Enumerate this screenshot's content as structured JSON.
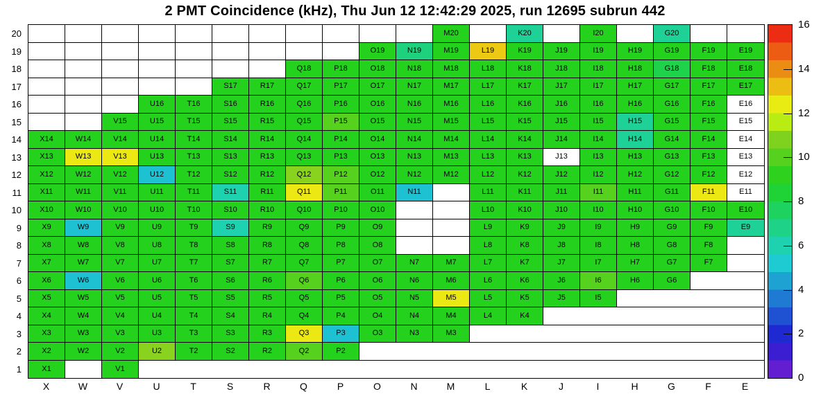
{
  "title": "2 PMT Coincidence (kHz), Thu Jun 12 12:42:29 2025, run 12695 subrun 442",
  "chart_data": {
    "type": "heatmap",
    "title": "2 PMT Coincidence (kHz), Thu Jun 12 12:42:29 2025, run 12695 subrun 442",
    "unit": "kHz",
    "x_categories": [
      "X",
      "W",
      "V",
      "U",
      "T",
      "S",
      "R",
      "Q",
      "P",
      "O",
      "N",
      "M",
      "L",
      "K",
      "J",
      "I",
      "H",
      "G",
      "F",
      "E"
    ],
    "y_categories_top_to_bottom": [
      "20",
      "19",
      "18",
      "17",
      "16",
      "15",
      "14",
      "13",
      "12",
      "11",
      "10",
      "9",
      "8",
      "7",
      "6",
      "5",
      "4",
      "3",
      "2",
      "1"
    ],
    "zlim": [
      0,
      16
    ],
    "colorbar_ticks": [
      0,
      2,
      4,
      6,
      8,
      10,
      12,
      14,
      16
    ],
    "legend_position": "right",
    "cells_label_value": [
      [
        "M20",
        9
      ],
      [
        "K20",
        6.5
      ],
      [
        "I20",
        9
      ],
      [
        "G20",
        6.5
      ],
      [
        "O19",
        9
      ],
      [
        "N19",
        7
      ],
      [
        "M19",
        9
      ],
      [
        "L19",
        13
      ],
      [
        "K19",
        9
      ],
      [
        "J19",
        9
      ],
      [
        "I19",
        9
      ],
      [
        "H19",
        9
      ],
      [
        "G19",
        9
      ],
      [
        "F19",
        9
      ],
      [
        "E19",
        9
      ],
      [
        "Q18",
        9
      ],
      [
        "P18",
        9
      ],
      [
        "O18",
        9
      ],
      [
        "N18",
        9
      ],
      [
        "M18",
        9
      ],
      [
        "L18",
        9
      ],
      [
        "K18",
        9
      ],
      [
        "J18",
        9
      ],
      [
        "I18",
        9
      ],
      [
        "H18",
        9
      ],
      [
        "G18",
        8
      ],
      [
        "F18",
        9
      ],
      [
        "E18",
        9
      ],
      [
        "S17",
        9
      ],
      [
        "R17",
        9
      ],
      [
        "Q17",
        9
      ],
      [
        "P17",
        9
      ],
      [
        "O17",
        9
      ],
      [
        "N17",
        9
      ],
      [
        "M17",
        9
      ],
      [
        "L17",
        9
      ],
      [
        "K17",
        9
      ],
      [
        "J17",
        9
      ],
      [
        "I17",
        9
      ],
      [
        "H17",
        9
      ],
      [
        "G17",
        9
      ],
      [
        "F17",
        9
      ],
      [
        "E17",
        9
      ],
      [
        "U16",
        9
      ],
      [
        "T16",
        9
      ],
      [
        "S16",
        9
      ],
      [
        "R16",
        9
      ],
      [
        "Q16",
        9
      ],
      [
        "P16",
        9
      ],
      [
        "O16",
        9
      ],
      [
        "N16",
        9
      ],
      [
        "M16",
        9
      ],
      [
        "L16",
        9
      ],
      [
        "K16",
        9
      ],
      [
        "J16",
        9
      ],
      [
        "I16",
        9
      ],
      [
        "H16",
        9
      ],
      [
        "G16",
        9
      ],
      [
        "F16",
        9
      ],
      [
        "E16",
        0
      ],
      [
        "V15",
        9
      ],
      [
        "U15",
        9
      ],
      [
        "T15",
        9
      ],
      [
        "S15",
        9
      ],
      [
        "R15",
        9
      ],
      [
        "Q15",
        9
      ],
      [
        "P15",
        10
      ],
      [
        "O15",
        9
      ],
      [
        "N15",
        9
      ],
      [
        "M15",
        9
      ],
      [
        "L15",
        9
      ],
      [
        "K15",
        9
      ],
      [
        "J15",
        9
      ],
      [
        "I15",
        9
      ],
      [
        "H15",
        6.5
      ],
      [
        "G15",
        9
      ],
      [
        "F15",
        9
      ],
      [
        "E15",
        0
      ],
      [
        "X14",
        9
      ],
      [
        "W14",
        9
      ],
      [
        "V14",
        9
      ],
      [
        "U14",
        9
      ],
      [
        "T14",
        9
      ],
      [
        "S14",
        9
      ],
      [
        "R14",
        9
      ],
      [
        "Q14",
        9
      ],
      [
        "P14",
        9
      ],
      [
        "O14",
        9
      ],
      [
        "N14",
        9
      ],
      [
        "M14",
        9
      ],
      [
        "L14",
        9
      ],
      [
        "K14",
        9
      ],
      [
        "J14",
        9
      ],
      [
        "I14",
        9
      ],
      [
        "H14",
        6.5
      ],
      [
        "G14",
        9
      ],
      [
        "F14",
        9
      ],
      [
        "E14",
        0
      ],
      [
        "X13",
        9
      ],
      [
        "W13",
        12.5
      ],
      [
        "V13",
        12.5
      ],
      [
        "U13",
        9
      ],
      [
        "T13",
        9
      ],
      [
        "S13",
        9
      ],
      [
        "R13",
        9
      ],
      [
        "Q13",
        9
      ],
      [
        "P13",
        9
      ],
      [
        "O13",
        9
      ],
      [
        "N13",
        9
      ],
      [
        "M13",
        9
      ],
      [
        "L13",
        9
      ],
      [
        "K13",
        9
      ],
      [
        "J13",
        0
      ],
      [
        "I13",
        9
      ],
      [
        "H13",
        9
      ],
      [
        "G13",
        9
      ],
      [
        "F13",
        9
      ],
      [
        "E13",
        0
      ],
      [
        "X12",
        9
      ],
      [
        "W12",
        9
      ],
      [
        "V12",
        9
      ],
      [
        "U12",
        5
      ],
      [
        "T12",
        9
      ],
      [
        "S12",
        9
      ],
      [
        "R12",
        9
      ],
      [
        "Q12",
        11
      ],
      [
        "P12",
        10
      ],
      [
        "O12",
        9
      ],
      [
        "N12",
        9
      ],
      [
        "M12",
        9
      ],
      [
        "L12",
        9
      ],
      [
        "K12",
        9
      ],
      [
        "J12",
        9
      ],
      [
        "I12",
        9
      ],
      [
        "H12",
        9
      ],
      [
        "G12",
        9
      ],
      [
        "F12",
        9
      ],
      [
        "E12",
        0
      ],
      [
        "X11",
        9
      ],
      [
        "W11",
        9
      ],
      [
        "V11",
        9
      ],
      [
        "U11",
        9
      ],
      [
        "T11",
        9
      ],
      [
        "S11",
        6
      ],
      [
        "R11",
        9
      ],
      [
        "Q11",
        12.5
      ],
      [
        "P11",
        10
      ],
      [
        "O11",
        9
      ],
      [
        "N11",
        5
      ],
      [
        "L11",
        9
      ],
      [
        "K11",
        9
      ],
      [
        "J11",
        9
      ],
      [
        "I11",
        10
      ],
      [
        "H11",
        9
      ],
      [
        "G11",
        9
      ],
      [
        "F11",
        12.5
      ],
      [
        "E11",
        0
      ],
      [
        "X10",
        9
      ],
      [
        "W10",
        9
      ],
      [
        "V10",
        9
      ],
      [
        "U10",
        9
      ],
      [
        "T10",
        9
      ],
      [
        "S10",
        9
      ],
      [
        "R10",
        9
      ],
      [
        "Q10",
        9
      ],
      [
        "P10",
        9
      ],
      [
        "O10",
        9
      ],
      [
        "L10",
        9
      ],
      [
        "K10",
        9
      ],
      [
        "J10",
        9
      ],
      [
        "I10",
        9
      ],
      [
        "H10",
        9
      ],
      [
        "G10",
        9
      ],
      [
        "F10",
        9
      ],
      [
        "E10",
        9
      ],
      [
        "X9",
        9
      ],
      [
        "W9",
        5
      ],
      [
        "V9",
        9
      ],
      [
        "U9",
        9
      ],
      [
        "T9",
        9
      ],
      [
        "S9",
        6
      ],
      [
        "R9",
        9
      ],
      [
        "Q9",
        9
      ],
      [
        "P9",
        9
      ],
      [
        "O9",
        9
      ],
      [
        "L9",
        9
      ],
      [
        "K9",
        9
      ],
      [
        "J9",
        9
      ],
      [
        "I9",
        9
      ],
      [
        "H9",
        9
      ],
      [
        "G9",
        9
      ],
      [
        "F9",
        9
      ],
      [
        "E9",
        6.5
      ],
      [
        "X8",
        9
      ],
      [
        "W8",
        9
      ],
      [
        "V8",
        9
      ],
      [
        "U8",
        9
      ],
      [
        "T8",
        9
      ],
      [
        "S8",
        9
      ],
      [
        "R8",
        9
      ],
      [
        "Q8",
        9
      ],
      [
        "P8",
        9
      ],
      [
        "O8",
        9
      ],
      [
        "L8",
        9
      ],
      [
        "K8",
        9
      ],
      [
        "J8",
        9
      ],
      [
        "I8",
        9
      ],
      [
        "H8",
        9
      ],
      [
        "G8",
        9
      ],
      [
        "F8",
        9
      ],
      [
        "X7",
        9
      ],
      [
        "W7",
        9
      ],
      [
        "V7",
        9
      ],
      [
        "U7",
        9
      ],
      [
        "T7",
        9
      ],
      [
        "S7",
        9
      ],
      [
        "R7",
        9
      ],
      [
        "Q7",
        9
      ],
      [
        "P7",
        9
      ],
      [
        "O7",
        9
      ],
      [
        "N7",
        9
      ],
      [
        "M7",
        9
      ],
      [
        "L7",
        9
      ],
      [
        "K7",
        9
      ],
      [
        "J7",
        9
      ],
      [
        "I7",
        9
      ],
      [
        "H7",
        9
      ],
      [
        "G7",
        9
      ],
      [
        "F7",
        9
      ],
      [
        "X6",
        9
      ],
      [
        "W6",
        5
      ],
      [
        "V6",
        9
      ],
      [
        "U6",
        9
      ],
      [
        "T6",
        9
      ],
      [
        "S6",
        9
      ],
      [
        "R6",
        9
      ],
      [
        "Q6",
        10
      ],
      [
        "P6",
        9
      ],
      [
        "O6",
        9
      ],
      [
        "N6",
        9
      ],
      [
        "M6",
        9
      ],
      [
        "L6",
        9
      ],
      [
        "K6",
        9
      ],
      [
        "J6",
        9
      ],
      [
        "I6",
        10
      ],
      [
        "H6",
        9
      ],
      [
        "G6",
        9
      ],
      [
        "X5",
        9
      ],
      [
        "W5",
        9
      ],
      [
        "V5",
        9
      ],
      [
        "U5",
        9
      ],
      [
        "T5",
        9
      ],
      [
        "S5",
        9
      ],
      [
        "R5",
        9
      ],
      [
        "Q5",
        9
      ],
      [
        "P5",
        9
      ],
      [
        "O5",
        9
      ],
      [
        "N5",
        9
      ],
      [
        "M5",
        12.5
      ],
      [
        "L5",
        9
      ],
      [
        "K5",
        9
      ],
      [
        "J5",
        9
      ],
      [
        "I5",
        9
      ],
      [
        "X4",
        9
      ],
      [
        "W4",
        9
      ],
      [
        "V4",
        9
      ],
      [
        "U4",
        9
      ],
      [
        "T4",
        9
      ],
      [
        "S4",
        9
      ],
      [
        "R4",
        9
      ],
      [
        "Q4",
        9
      ],
      [
        "P4",
        9
      ],
      [
        "O4",
        9
      ],
      [
        "N4",
        9
      ],
      [
        "M4",
        9
      ],
      [
        "L4",
        9
      ],
      [
        "K4",
        9
      ],
      [
        "X3",
        9
      ],
      [
        "W3",
        9
      ],
      [
        "V3",
        9
      ],
      [
        "U3",
        9
      ],
      [
        "T3",
        9
      ],
      [
        "S3",
        9
      ],
      [
        "R3",
        9
      ],
      [
        "Q3",
        12.5
      ],
      [
        "P3",
        5
      ],
      [
        "O3",
        9
      ],
      [
        "N3",
        9
      ],
      [
        "M3",
        9
      ],
      [
        "X2",
        9
      ],
      [
        "W2",
        9
      ],
      [
        "V2",
        9
      ],
      [
        "U2",
        11
      ],
      [
        "T2",
        9
      ],
      [
        "S2",
        9
      ],
      [
        "R2",
        9
      ],
      [
        "Q2",
        10
      ],
      [
        "P2",
        9
      ],
      [
        "X1",
        9
      ],
      [
        "V1",
        9
      ]
    ],
    "empty_outlined_cells": [
      "X20",
      "W20",
      "V20",
      "U20",
      "T20",
      "S20",
      "R20",
      "Q20",
      "P20",
      "O20",
      "N20",
      "L20",
      "J20",
      "H20",
      "F20",
      "E20",
      "X19",
      "W19",
      "V19",
      "U19",
      "T19",
      "S19",
      "R19",
      "Q19",
      "P19",
      "X18",
      "W18",
      "V18",
      "U18",
      "T18",
      "S18",
      "R18",
      "X17",
      "W17",
      "V17",
      "U17",
      "T17",
      "X16",
      "W16",
      "V16",
      "X15",
      "W15",
      "M11",
      "N10",
      "M10",
      "N9",
      "M9",
      "N8",
      "M8",
      "W1"
    ]
  }
}
